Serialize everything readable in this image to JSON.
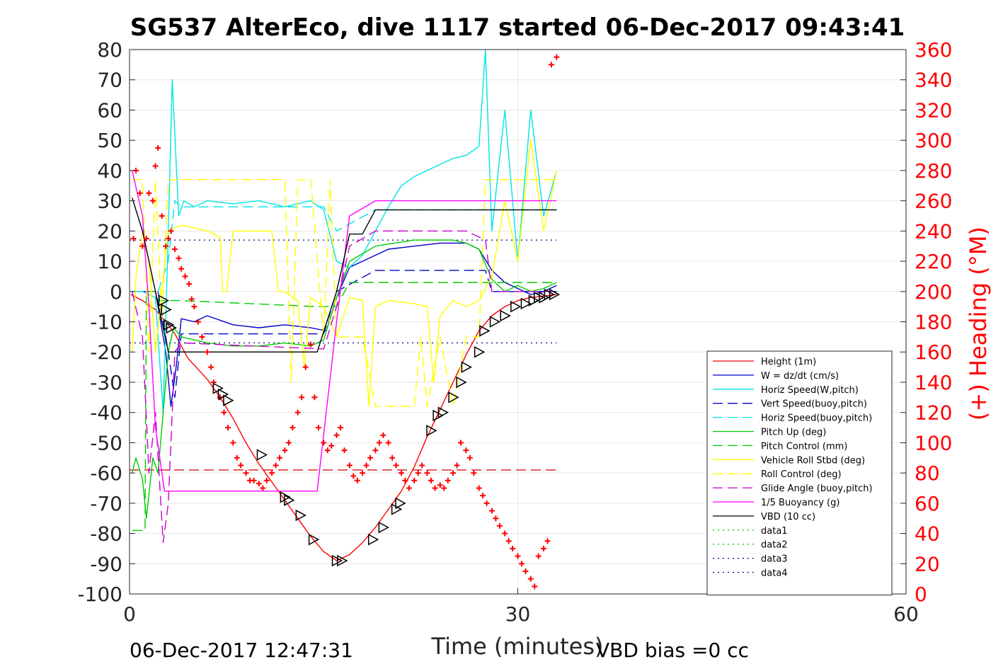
{
  "chart_data": {
    "type": "line",
    "title": "SG537 AlterEco, dive 1117 started 06-Dec-2017 09:43:41",
    "xlabel": "Time (minutes)",
    "ylabel_right": "(+) Heading (°M)",
    "xlim": [
      0,
      60
    ],
    "ylim": [
      -100,
      80
    ],
    "ylim_right": [
      0,
      360
    ],
    "x_ticks": [
      "0",
      "30",
      "60"
    ],
    "y_ticks": [
      "80",
      "70",
      "60",
      "50",
      "40",
      "30",
      "20",
      "10",
      "0",
      "-10",
      "-20",
      "-30",
      "-40",
      "-50",
      "-60",
      "-70",
      "-80",
      "-90",
      "-100"
    ],
    "y_ticks_right": [
      "360",
      "340",
      "320",
      "300",
      "280",
      "260",
      "240",
      "220",
      "200",
      "180",
      "160",
      "140",
      "120",
      "100",
      "80",
      "60",
      "40",
      "20",
      "0"
    ],
    "grid": true,
    "legend_position": "bottom-right",
    "footer_left": "06-Dec-2017 12:47:31",
    "footer_right": "VBD bias =0 cc",
    "series": [
      {
        "name": "Height (1m)",
        "color": "#ff0000",
        "style": "solid",
        "x": [
          0.1,
          1.0,
          2.0,
          2.6,
          3.0,
          3.5,
          4.5,
          6.0,
          7.0,
          8.0,
          9.0,
          10.0,
          11.0,
          12.0,
          13.0,
          14.0,
          15.0,
          16.0,
          17.0,
          18.0,
          19.0,
          20.0,
          21.0,
          22.0,
          23.0,
          24.0,
          25.0,
          26.0,
          27.0,
          28.0,
          29.0,
          30.0,
          31.0,
          32.0,
          33.0
        ],
        "y": [
          -1,
          -3,
          -6,
          -9,
          -11,
          -14,
          -22,
          -29,
          -35,
          -42,
          -50,
          -57,
          -63,
          -69,
          -75,
          -81,
          -86,
          -89,
          -87,
          -83,
          -78,
          -72,
          -66,
          -58,
          -48,
          -39,
          -30,
          -21,
          -13,
          -8,
          -5,
          -3,
          -2,
          -1.5,
          -1
        ]
      },
      {
        "name": "W = dz/dt (cm/s)",
        "color": "#0000cc",
        "style": "solid",
        "x": [
          0.2,
          1.0,
          2.0,
          2.8,
          3.2,
          3.6,
          4.0,
          5.0,
          6.0,
          8.0,
          10.0,
          12.0,
          14.0,
          15.2,
          16.0,
          17.0,
          18.0,
          19.0,
          20.0,
          22.0,
          24.0,
          26.0,
          27.0,
          28.0,
          29.0,
          30.0,
          31.0,
          32.0,
          33.0
        ],
        "y": [
          0,
          0,
          0,
          -20,
          -38,
          -25,
          -9,
          -10,
          -8,
          -11,
          -12,
          -11,
          -12,
          -13,
          -2,
          8,
          10,
          12,
          14,
          15,
          16,
          16,
          14,
          7,
          3,
          1,
          -1,
          0,
          2
        ]
      },
      {
        "name": "Horiz Speed(W,pitch)",
        "color": "#00e5e5",
        "style": "solid",
        "x": [
          0.2,
          1.0,
          2.0,
          2.6,
          3.0,
          3.3,
          3.8,
          4.2,
          5.0,
          6.0,
          8.0,
          10.0,
          12.0,
          14.0,
          15.0,
          16.0,
          17.0,
          18.0,
          19.0,
          20.0,
          21.0,
          22.0,
          23.0,
          24.0,
          25.0,
          26.0,
          27.0,
          27.5,
          28.0,
          29.0,
          30.0,
          31.0,
          32.0,
          33.0
        ],
        "y": [
          0,
          0,
          -2,
          -40,
          20,
          70,
          25,
          30,
          28,
          30,
          29,
          30,
          28,
          30,
          27,
          10,
          8,
          12,
          20,
          28,
          35,
          38,
          40,
          42,
          44,
          45,
          48,
          80,
          20,
          60,
          10,
          60,
          25,
          40
        ]
      },
      {
        "name": "Vert Speed(buoy,pitch)",
        "color": "#0000cc",
        "style": "dashed",
        "x": [
          2.2,
          3.0,
          3.5,
          4.0,
          15.0,
          16.0,
          19.0,
          26.0,
          27.5,
          28.0,
          33.0
        ],
        "y": [
          0,
          -20,
          -35,
          -14,
          -14,
          0,
          7,
          7,
          7,
          0,
          0
        ]
      },
      {
        "name": "Horiz Speed(buoy,pitch)",
        "color": "#00e5e5",
        "style": "dashed",
        "x": [
          2.2,
          3.0,
          3.5,
          4.0,
          15.0,
          16.0,
          19.0,
          26.0,
          27.5,
          33.0
        ],
        "y": [
          0,
          10,
          30,
          28,
          28,
          20,
          27,
          27,
          27,
          27
        ]
      },
      {
        "name": "Pitch Up (deg)",
        "color": "#00cc00",
        "style": "solid",
        "x": [
          0.2,
          0.5,
          1.0,
          1.3,
          1.8,
          2.2,
          2.6,
          3.0,
          3.4,
          4.0,
          5.0,
          6.0,
          8.0,
          10.0,
          12.0,
          14.0,
          15.0,
          16.0,
          17.0,
          19.0,
          22.0,
          25.0,
          26.0,
          27.0,
          28.0,
          29.0,
          30.0,
          31.0,
          32.0,
          33.0
        ],
        "y": [
          -60,
          -55,
          -62,
          -75,
          -55,
          -60,
          -40,
          -20,
          -12,
          -15,
          -16,
          -17,
          -18,
          -18,
          -17,
          -18,
          -16,
          -2,
          10,
          15,
          17,
          17,
          16,
          14,
          4,
          0,
          2,
          0,
          1,
          3
        ]
      },
      {
        "name": "Pitch Control (mm)",
        "color": "#00cc00",
        "style": "dashed",
        "x": [
          0.2,
          1.2,
          1.3,
          2.0,
          2.2,
          3.0,
          4.0,
          14.5,
          16.0,
          17.0,
          27.0,
          33.0
        ],
        "y": [
          -79,
          -79,
          0,
          0,
          -3,
          -3,
          -3,
          -5,
          -5,
          3,
          3,
          3
        ]
      },
      {
        "name": "Vehicle Roll Stbd (deg)",
        "color": "#ffff00",
        "style": "solid",
        "x": [
          0.2,
          0.5,
          1.0,
          1.5,
          2.0,
          3.0,
          4.0,
          6.0,
          7.0,
          7.2,
          7.5,
          8.0,
          10.0,
          11.0,
          11.5,
          12.0,
          13.0,
          13.5,
          14.0,
          15.0,
          16.0,
          17.0,
          18.0,
          18.5,
          19.0,
          20.0,
          22.0,
          23.0,
          23.5,
          24.0,
          25.0,
          26.0,
          27.0,
          28.0,
          29.0,
          30.0,
          31.0,
          32.0,
          33.0
        ],
        "y": [
          -20,
          5,
          20,
          10,
          -20,
          20,
          22,
          20,
          18,
          0,
          0,
          20,
          20,
          20,
          0,
          0,
          -3,
          -25,
          -2,
          -5,
          -15,
          -2,
          -3,
          -38,
          -5,
          -3,
          -4,
          -5,
          -30,
          -8,
          -3,
          -5,
          -3,
          5,
          30,
          10,
          50,
          20,
          40
        ]
      },
      {
        "name": "Roll Control (deg)",
        "color": "#ffff00",
        "style": "dashed",
        "x": [
          0.2,
          1.0,
          1.5,
          2.0,
          2.5,
          3.0,
          4.0,
          10.0,
          12.0,
          12.5,
          13.0,
          14.0,
          15.0,
          15.5,
          16.0,
          18.0,
          19.0,
          22.0,
          22.5,
          23.0,
          24.0,
          25.0,
          26.0,
          27.0,
          27.5,
          28.0,
          33.0
        ],
        "y": [
          37,
          37,
          -20,
          37,
          -10,
          37,
          37,
          37,
          37,
          -30,
          37,
          37,
          -15,
          37,
          -15,
          -15,
          -38,
          -38,
          -15,
          -38,
          -15,
          -38,
          -15,
          -15,
          37,
          37,
          37
        ]
      },
      {
        "name": "Glide Angle (buoy,pitch)",
        "color": "#cc00cc",
        "style": "dashed",
        "x": [
          0.2,
          1.0,
          1.5,
          2.0,
          2.6,
          3.0,
          3.5,
          4.0,
          15.0,
          16.0,
          17.0,
          19.0,
          22.0,
          26.0,
          27.5,
          28.0,
          33.0
        ],
        "y": [
          0,
          -15,
          -60,
          -40,
          -83,
          -70,
          -20,
          -17,
          -19,
          -5,
          15,
          20,
          20,
          20,
          17,
          0,
          0
        ]
      },
      {
        "name": "1/5 Buoyancy (g)",
        "color": "#ff00ff",
        "style": "solid",
        "x": [
          0.2,
          1.0,
          1.5,
          2.0,
          2.7,
          3.0,
          4.0,
          8.0,
          12.0,
          14.5,
          16.0,
          17.0,
          19.0,
          20.0,
          25.0,
          30.0,
          33.0
        ],
        "y": [
          40,
          25,
          -5,
          -45,
          -66,
          -66,
          -66,
          -66,
          -66,
          -66,
          -10,
          25,
          30,
          30,
          30,
          30,
          30
        ]
      },
      {
        "name": "VBD (10 cc)",
        "color": "#000000",
        "style": "solid",
        "x": [
          0.2,
          1.0,
          2.0,
          2.6,
          3.0,
          4.0,
          8.0,
          12.0,
          14.5,
          16.0,
          17.0,
          18.0,
          19.0,
          20.0,
          25.0,
          30.0,
          33.0
        ],
        "y": [
          31,
          20,
          0,
          -12,
          -20,
          -20,
          -20,
          -20,
          -20,
          0,
          19,
          19,
          27,
          27,
          27,
          27,
          27
        ]
      },
      {
        "name": "data1",
        "color": "#00cc00",
        "style": "dotted",
        "x": [],
        "y": []
      },
      {
        "name": "data2",
        "color": "#00cc00",
        "style": "dotted",
        "x": [],
        "y": []
      },
      {
        "name": "data3",
        "color": "#000080",
        "style": "dotted",
        "x": [],
        "y": []
      },
      {
        "name": "data4",
        "color": "#000080",
        "style": "dotted",
        "x": [],
        "y": []
      }
    ],
    "reference_lines": [
      {
        "y": 17,
        "color": "#000080",
        "style": "dotted"
      },
      {
        "y": -17,
        "color": "#000080",
        "style": "dotted"
      },
      {
        "y": -59,
        "color": "#cc0000",
        "style": "dashed"
      }
    ],
    "heading_points": {
      "color": "#ff0000",
      "marker": "plus",
      "axis": "right",
      "x": [
        0.3,
        0.5,
        0.8,
        1.0,
        1.3,
        1.5,
        1.8,
        2.0,
        2.2,
        2.5,
        2.8,
        3.0,
        3.2,
        3.5,
        3.8,
        4.0,
        4.3,
        4.6,
        4.8,
        5.0,
        5.3,
        5.6,
        6.0,
        6.3,
        6.5,
        7.0,
        7.3,
        7.6,
        8.0,
        8.3,
        8.6,
        9.0,
        9.3,
        9.6,
        10.0,
        10.3,
        10.6,
        11.0,
        11.3,
        11.6,
        12.0,
        12.3,
        12.6,
        13.0,
        13.3,
        13.6,
        14.0,
        14.3,
        14.6,
        15.0,
        15.3,
        15.6,
        16.0,
        16.3,
        16.6,
        17.0,
        17.3,
        17.6,
        18.0,
        18.3,
        18.6,
        19.0,
        19.3,
        19.6,
        20.0,
        20.3,
        20.6,
        21.0,
        21.3,
        21.6,
        22.0,
        22.3,
        22.6,
        23.0,
        23.3,
        23.6,
        24.0,
        24.3,
        24.6,
        25.0,
        25.3,
        25.6,
        26.0,
        26.3,
        26.6,
        27.0,
        27.3,
        27.6,
        28.0,
        28.3,
        28.6,
        29.0,
        29.3,
        29.6,
        30.0,
        30.3,
        30.6,
        31.0,
        31.3,
        31.6,
        32.0,
        32.3,
        32.6,
        33.0
      ],
      "y": [
        235,
        280,
        265,
        230,
        235,
        265,
        260,
        283,
        295,
        250,
        230,
        235,
        240,
        228,
        222,
        215,
        210,
        205,
        195,
        190,
        180,
        170,
        160,
        150,
        140,
        130,
        120,
        110,
        100,
        90,
        85,
        80,
        75,
        75,
        73,
        70,
        75,
        80,
        85,
        90,
        95,
        100,
        110,
        120,
        130,
        150,
        165,
        130,
        110,
        100,
        95,
        98,
        105,
        110,
        95,
        85,
        78,
        75,
        80,
        85,
        90,
        95,
        100,
        105,
        100,
        90,
        85,
        80,
        75,
        70,
        75,
        80,
        85,
        80,
        75,
        70,
        72,
        70,
        75,
        80,
        85,
        100,
        95,
        90,
        80,
        70,
        65,
        60,
        55,
        50,
        45,
        40,
        35,
        30,
        25,
        20,
        15,
        10,
        5,
        25,
        30,
        35,
        350,
        355
      ]
    },
    "vbd_markers": {
      "color": "#000000",
      "marker": "triangle",
      "x": [
        2.6,
        2.8,
        3.0,
        3.2,
        6.8,
        7.2,
        7.6,
        10.2,
        12.0,
        12.3,
        13.2,
        14.2,
        16.0,
        16.4,
        18.8,
        19.6,
        20.6,
        20.9,
        23.3,
        23.8,
        24.2,
        25.0,
        25.6,
        26.0,
        27.0,
        27.4,
        28.2,
        29.0,
        29.8,
        30.6,
        31.2,
        31.6,
        32.0,
        32.4,
        32.8
      ],
      "y": [
        -3,
        -6,
        -11,
        -12,
        -32,
        -34,
        -36,
        -54,
        -68,
        -69,
        -74,
        -82,
        -89,
        -89,
        -82,
        -78,
        -72,
        -70,
        -46,
        -41,
        -40,
        -35,
        -30,
        -25,
        -20,
        -13,
        -10,
        -8,
        -5,
        -4,
        -3,
        -2,
        -2,
        -1,
        -1
      ]
    }
  }
}
